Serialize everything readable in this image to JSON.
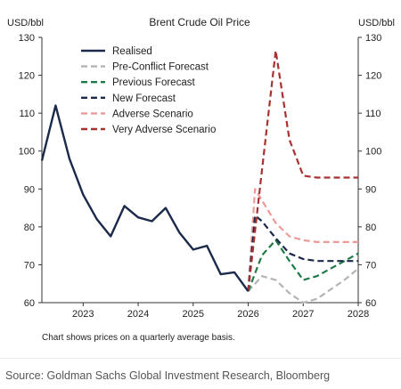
{
  "chart_data": {
    "type": "line",
    "title": "Brent Crude Oil Price",
    "ylabel_left": "USD/bbl",
    "ylabel_right": "USD/bbl",
    "xlabel": "",
    "ylim": [
      60,
      130
    ],
    "yticks": [
      60,
      70,
      80,
      90,
      100,
      110,
      120,
      130
    ],
    "xlim": [
      2022.25,
      2028.0
    ],
    "xticks": [
      2023,
      2024,
      2025,
      2026,
      2027,
      2028
    ],
    "xticklabels": [
      "2023",
      "2024",
      "2025",
      "2026",
      "2027",
      "2028"
    ],
    "grid": false,
    "legend_position": "top-left",
    "note": "Chart shows prices on a quarterly average basis.",
    "series": [
      {
        "name": "Realised",
        "color": "#1b2a4a",
        "dash": "solid",
        "x": [
          2022.25,
          2022.5,
          2022.75,
          2023.0,
          2023.25,
          2023.5,
          2023.75,
          2024.0,
          2024.25,
          2024.5,
          2024.75,
          2025.0,
          2025.25,
          2025.5,
          2025.75,
          2026.0
        ],
        "y": [
          97.5,
          112,
          98,
          88.5,
          82,
          77.5,
          85.5,
          82.5,
          81.5,
          85,
          78.5,
          74,
          75,
          67.5,
          68,
          63
        ]
      },
      {
        "name": "Pre-Conflict Forecast",
        "color": "#b4b4b4",
        "dash": "dashed",
        "x": [
          2026.0,
          2026.25,
          2026.5,
          2026.75,
          2027.0,
          2027.25,
          2027.5,
          2027.75,
          2028.0
        ],
        "y": [
          63,
          67,
          66,
          62.5,
          60,
          61,
          63.5,
          66,
          69
        ]
      },
      {
        "name": "Previous Forecast",
        "color": "#1e7a46",
        "dash": "dashed",
        "x": [
          2026.0,
          2026.25,
          2026.5,
          2026.75,
          2027.0,
          2027.25,
          2027.5,
          2027.75,
          2028.0
        ],
        "y": [
          63,
          72.5,
          76.5,
          71,
          66,
          67,
          69,
          71,
          73
        ]
      },
      {
        "name": "New Forecast",
        "color": "#1b2a4a",
        "dash": "dashed",
        "x": [
          2026.0,
          2026.125,
          2026.25,
          2026.5,
          2026.75,
          2027.0,
          2027.25,
          2027.5,
          2027.75,
          2028.0
        ],
        "y": [
          63,
          83,
          81.5,
          77,
          73,
          71.5,
          71,
          71,
          71,
          71
        ]
      },
      {
        "name": "Adverse Scenario",
        "color": "#eb9a98",
        "dash": "dashed",
        "x": [
          2026.0,
          2026.125,
          2026.25,
          2026.5,
          2026.75,
          2027.0,
          2027.25,
          2027.5,
          2027.75,
          2028.0
        ],
        "y": [
          63,
          90,
          87,
          81,
          77.5,
          76.5,
          76,
          76,
          76,
          76
        ]
      },
      {
        "name": "Very Adverse Scenario",
        "color": "#a83232",
        "dash": "dashed",
        "x": [
          2026.0,
          2026.25,
          2026.5,
          2026.75,
          2027.0,
          2027.25,
          2027.5,
          2027.75,
          2028.0
        ],
        "y": [
          63,
          95,
          126.5,
          103,
          93.5,
          93,
          93,
          93,
          93
        ]
      }
    ]
  },
  "source_text": "Source: Goldman Sachs Global Investment Research, Bloomberg"
}
